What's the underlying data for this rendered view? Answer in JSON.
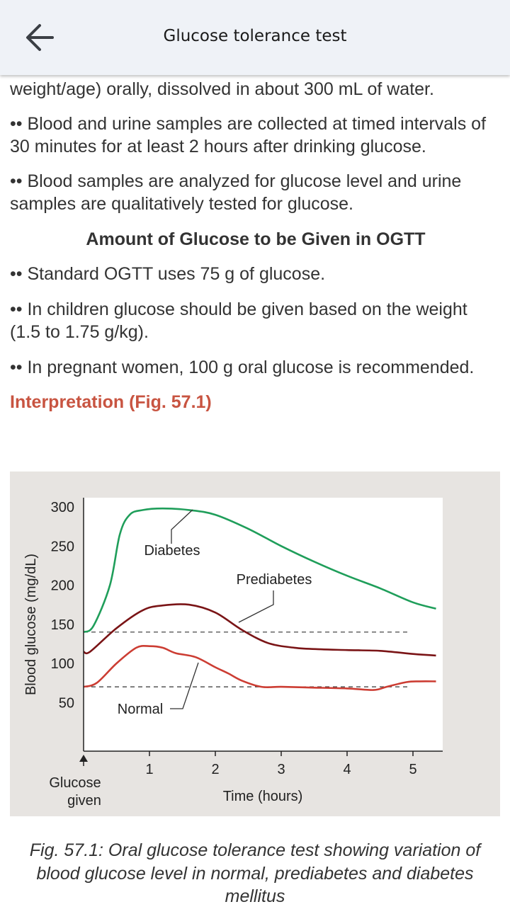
{
  "appbar": {
    "title": "Glucose tolerance test",
    "back_icon": "arrow-left-icon"
  },
  "content": {
    "para1": "weight/age) orally, dissolved in about 300 mL of water.",
    "bullet1": "•• Blood and urine samples are collected at timed intervals of 30 minutes for at least 2 hours after drinking glucose.",
    "bullet2": "•• Blood samples are analyzed for glucose level and urine samples are qualitatively tested for glucose.",
    "subheading": "Amount of Glucose to be Given in OGTT",
    "bullet3": "•• Standard OGTT uses 75 g of glucose.",
    "bullet4": "•• In children glucose should be given based on the weight (1.5 to 1.75 g/kg).",
    "bullet5": "•• In pregnant women, 100 g oral glucose is recommended.",
    "interpretation_heading": "Interpretation (Fig. 57.1)"
  },
  "figure": {
    "caption": "Fig. 57.1: Oral glucose tolerance test showing variation of blood glucose level in normal, prediabetes and diabetes mellitus"
  },
  "chart_data": {
    "type": "line",
    "ylabel": "Blood glucose (mg/dL)",
    "xlabel": "Time (hours)",
    "x_ticks": [
      "1",
      "2",
      "3",
      "4",
      "5"
    ],
    "y_ticks": [
      "300",
      "250",
      "200",
      "150",
      "100",
      "50"
    ],
    "xlim": [
      0,
      5.5
    ],
    "ylim": [
      0,
      300
    ],
    "arrow_label_line1": "Glucose",
    "arrow_label_line2": "given",
    "reference_lines": [
      140,
      70
    ],
    "colors": {
      "Diabetes": "#1f9e5a",
      "Prediabetes": "#7a1416",
      "Normal": "#cc3d33"
    },
    "series": [
      {
        "name": "Diabetes",
        "x": [
          0,
          0.15,
          0.4,
          0.55,
          0.7,
          0.9,
          1.2,
          1.6,
          2.0,
          2.5,
          3.0,
          3.5,
          4.0,
          4.5,
          5.0,
          5.35
        ],
        "y": [
          140,
          148,
          200,
          265,
          290,
          296,
          298,
          296,
          290,
          272,
          250,
          230,
          212,
          196,
          178,
          170
        ]
      },
      {
        "name": "Prediabetes",
        "x": [
          0,
          0.1,
          0.5,
          0.9,
          1.2,
          1.6,
          2.0,
          2.4,
          2.8,
          3.2,
          3.6,
          4.0,
          4.5,
          5.0,
          5.35
        ],
        "y": [
          115,
          115,
          145,
          168,
          174,
          175,
          165,
          143,
          126,
          120,
          118,
          117,
          116,
          112,
          110
        ]
      },
      {
        "name": "Normal",
        "x": [
          0,
          0.2,
          0.5,
          0.8,
          1.0,
          1.2,
          1.4,
          1.7,
          2.0,
          2.2,
          2.4,
          2.7,
          3.0,
          3.5,
          4.0,
          4.4,
          4.6,
          4.9,
          5.1,
          5.35
        ],
        "y": [
          70,
          75,
          100,
          120,
          122,
          120,
          113,
          108,
          95,
          87,
          78,
          70,
          70,
          69,
          68,
          66,
          70,
          76,
          77,
          77
        ]
      }
    ],
    "annotations": [
      "Diabetes",
      "Prediabetes",
      "Normal"
    ]
  }
}
